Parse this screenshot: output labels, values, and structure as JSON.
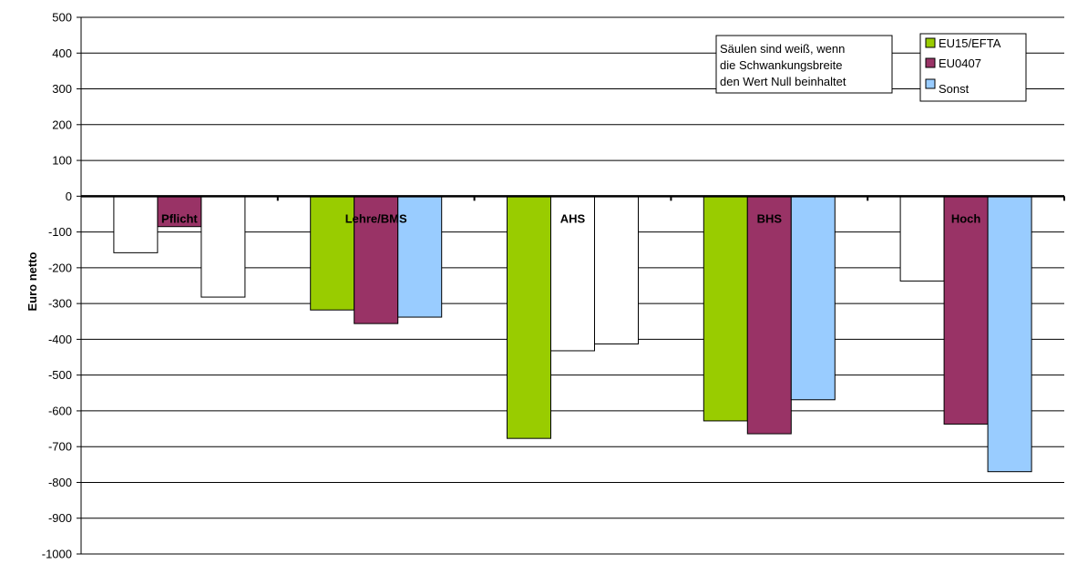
{
  "chart_data": {
    "type": "bar",
    "title": "",
    "xlabel": "",
    "ylabel": "Euro netto",
    "ylim": [
      -1000,
      500
    ],
    "ytick_step": 100,
    "grid": true,
    "legend_placement": "top-right",
    "categories": [
      "Pflicht",
      "Lehre/BMS",
      "AHS",
      "BHS",
      "Hoch"
    ],
    "series": [
      {
        "name": "EU15/EFTA",
        "color": "#99cc00",
        "values": [
          null,
          -318,
          -677,
          -628,
          -237
        ],
        "white": [
          false,
          false,
          false,
          false,
          true
        ]
      },
      {
        "name": "EU0407",
        "color": "#993366",
        "values": [
          -85,
          -356,
          -432,
          -664,
          -637
        ],
        "white": [
          false,
          false,
          true,
          false,
          false
        ]
      },
      {
        "name": "Sonst",
        "color": "#99ccff",
        "values": [
          -282,
          -338,
          -413,
          -569,
          -770
        ],
        "white": [
          true,
          false,
          true,
          false,
          false
        ]
      }
    ],
    "extra_bars": [
      {
        "category_index": 0,
        "slot": 0,
        "value": -158,
        "white": true
      }
    ],
    "annotation": [
      "Säulen sind weiß, wenn",
      "die Schwankungsbreite",
      "den Wert Null beinhaltet"
    ]
  }
}
